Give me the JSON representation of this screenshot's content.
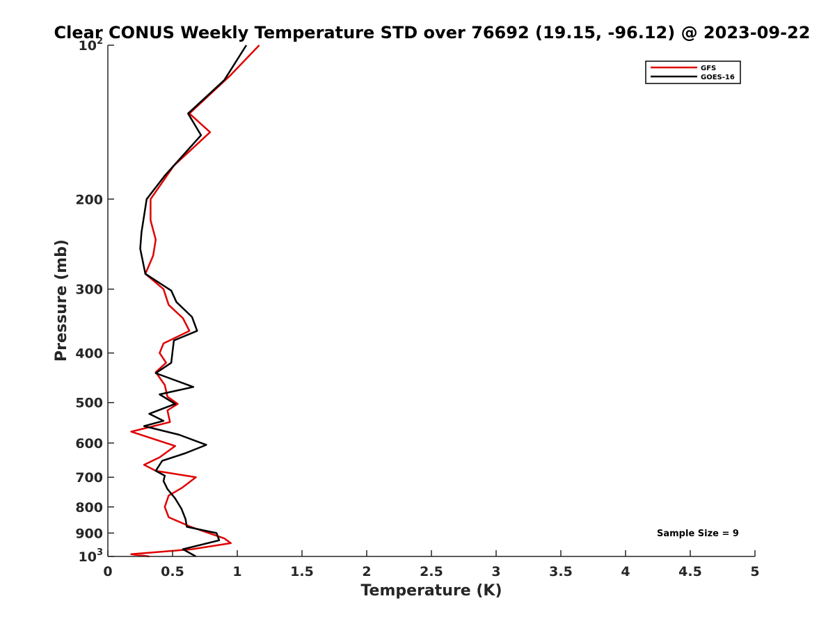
{
  "chart_data": {
    "type": "line",
    "title": "Clear CONUS Weekly Temperature STD over 76692 (19.15, -96.12) @ 2023-09-22",
    "xlabel": "Temperature (K)",
    "ylabel": "Pressure (mb)",
    "xlim": [
      0,
      5
    ],
    "ylim": [
      100,
      1000
    ],
    "yscale": "log",
    "y_reversed": true,
    "grid": false,
    "legend_position": "top-right",
    "x_ticks": [
      0,
      0.5,
      1,
      1.5,
      2,
      2.5,
      3,
      3.5,
      4,
      4.5,
      5
    ],
    "x_tick_labels": [
      "0",
      "0.5",
      "1",
      "1.5",
      "2",
      "2.5",
      "3",
      "3.5",
      "4",
      "4.5",
      "5"
    ],
    "y_ticks": [
      100,
      200,
      300,
      400,
      500,
      600,
      700,
      800,
      900,
      1000
    ],
    "y_tick_labels": [
      {
        "base": "10",
        "exp": "2"
      },
      {
        "base": "200",
        "exp": ""
      },
      {
        "base": "300",
        "exp": ""
      },
      {
        "base": "400",
        "exp": ""
      },
      {
        "base": "500",
        "exp": ""
      },
      {
        "base": "600",
        "exp": ""
      },
      {
        "base": "700",
        "exp": ""
      },
      {
        "base": "800",
        "exp": ""
      },
      {
        "base": "900",
        "exp": ""
      },
      {
        "base": "10",
        "exp": "3"
      }
    ],
    "series": [
      {
        "name": "GFS",
        "color": "#e00000",
        "points": [
          [
            1.17,
            100
          ],
          [
            0.94,
            115
          ],
          [
            0.63,
            136
          ],
          [
            0.79,
            148
          ],
          [
            0.51,
            172
          ],
          [
            0.33,
            200
          ],
          [
            0.33,
            220
          ],
          [
            0.37,
            240
          ],
          [
            0.35,
            258
          ],
          [
            0.29,
            280
          ],
          [
            0.43,
            300
          ],
          [
            0.47,
            322
          ],
          [
            0.58,
            342
          ],
          [
            0.63,
            362
          ],
          [
            0.43,
            383
          ],
          [
            0.4,
            400
          ],
          [
            0.45,
            418
          ],
          [
            0.37,
            436
          ],
          [
            0.44,
            462
          ],
          [
            0.46,
            487
          ],
          [
            0.54,
            503
          ],
          [
            0.46,
            518
          ],
          [
            0.48,
            546
          ],
          [
            0.18,
            570
          ],
          [
            0.52,
            608
          ],
          [
            0.4,
            640
          ],
          [
            0.28,
            662
          ],
          [
            0.37,
            680
          ],
          [
            0.68,
            700
          ],
          [
            0.57,
            735
          ],
          [
            0.47,
            760
          ],
          [
            0.44,
            800
          ],
          [
            0.47,
            838
          ],
          [
            0.64,
            875
          ],
          [
            0.9,
            922
          ],
          [
            0.95,
            942
          ],
          [
            0.65,
            968
          ],
          [
            0.18,
            990
          ],
          [
            0.32,
            1000
          ]
        ]
      },
      {
        "name": "GOES-16",
        "color": "#000000",
        "points": [
          [
            1.07,
            100
          ],
          [
            0.9,
            117
          ],
          [
            0.62,
            136
          ],
          [
            0.72,
            150
          ],
          [
            0.44,
            180
          ],
          [
            0.3,
            200
          ],
          [
            0.26,
            232
          ],
          [
            0.25,
            250
          ],
          [
            0.29,
            280
          ],
          [
            0.49,
            302
          ],
          [
            0.53,
            318
          ],
          [
            0.65,
            340
          ],
          [
            0.69,
            362
          ],
          [
            0.51,
            378
          ],
          [
            0.5,
            397
          ],
          [
            0.49,
            418
          ],
          [
            0.37,
            438
          ],
          [
            0.66,
            466
          ],
          [
            0.4,
            482
          ],
          [
            0.52,
            503
          ],
          [
            0.32,
            526
          ],
          [
            0.43,
            543
          ],
          [
            0.28,
            556
          ],
          [
            0.55,
            578
          ],
          [
            0.76,
            605
          ],
          [
            0.6,
            628
          ],
          [
            0.42,
            650
          ],
          [
            0.37,
            680
          ],
          [
            0.44,
            695
          ],
          [
            0.43,
            712
          ],
          [
            0.46,
            738
          ],
          [
            0.52,
            770
          ],
          [
            0.57,
            808
          ],
          [
            0.6,
            845
          ],
          [
            0.61,
            875
          ],
          [
            0.84,
            900
          ],
          [
            0.86,
            930
          ],
          [
            0.58,
            968
          ],
          [
            0.68,
            1000
          ]
        ]
      }
    ],
    "annotations": [
      {
        "text": "Sample Size = 9",
        "position": "bottom-right"
      }
    ]
  }
}
